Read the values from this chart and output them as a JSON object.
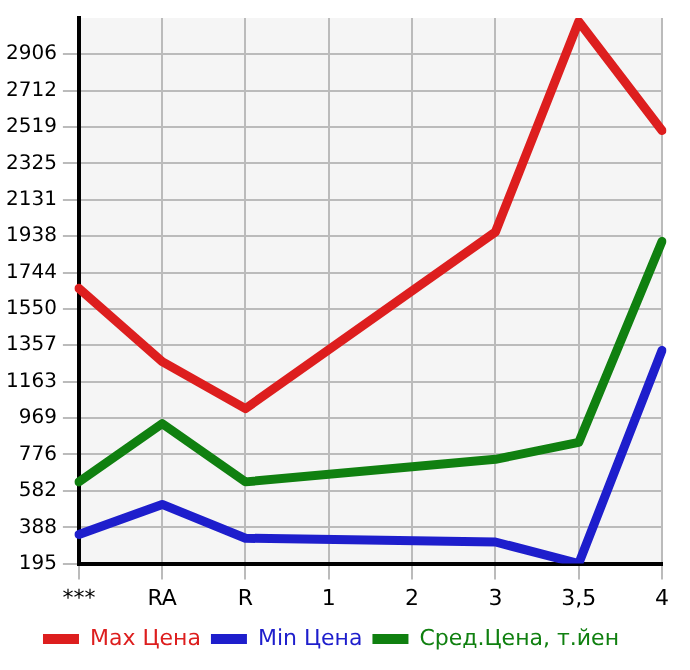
{
  "chart_data": {
    "type": "line",
    "categories": [
      "***",
      "RA",
      "R",
      "1",
      "2",
      "3",
      "3,5",
      "4"
    ],
    "series": [
      {
        "name": "Max Цена",
        "color": "#dd1e1e",
        "values": [
          1660,
          1270,
          1020,
          null,
          null,
          1960,
          3080,
          2500
        ]
      },
      {
        "name": "Min Цена",
        "color": "#1e1ecc",
        "values": [
          350,
          510,
          330,
          null,
          null,
          310,
          195,
          1330
        ]
      },
      {
        "name": "Сред.Цена, т.йен",
        "color": "#108010",
        "values": [
          630,
          940,
          630,
          null,
          null,
          750,
          840,
          1910
        ]
      }
    ],
    "ylim": [
      195,
      3099
    ],
    "yticks": [
      195,
      388,
      582,
      776,
      969,
      1163,
      1357,
      1550,
      1744,
      1938,
      2131,
      2325,
      2519,
      2712,
      2906
    ],
    "grid": true,
    "legend": "bottom",
    "marker": "none",
    "line_style": "solid"
  }
}
